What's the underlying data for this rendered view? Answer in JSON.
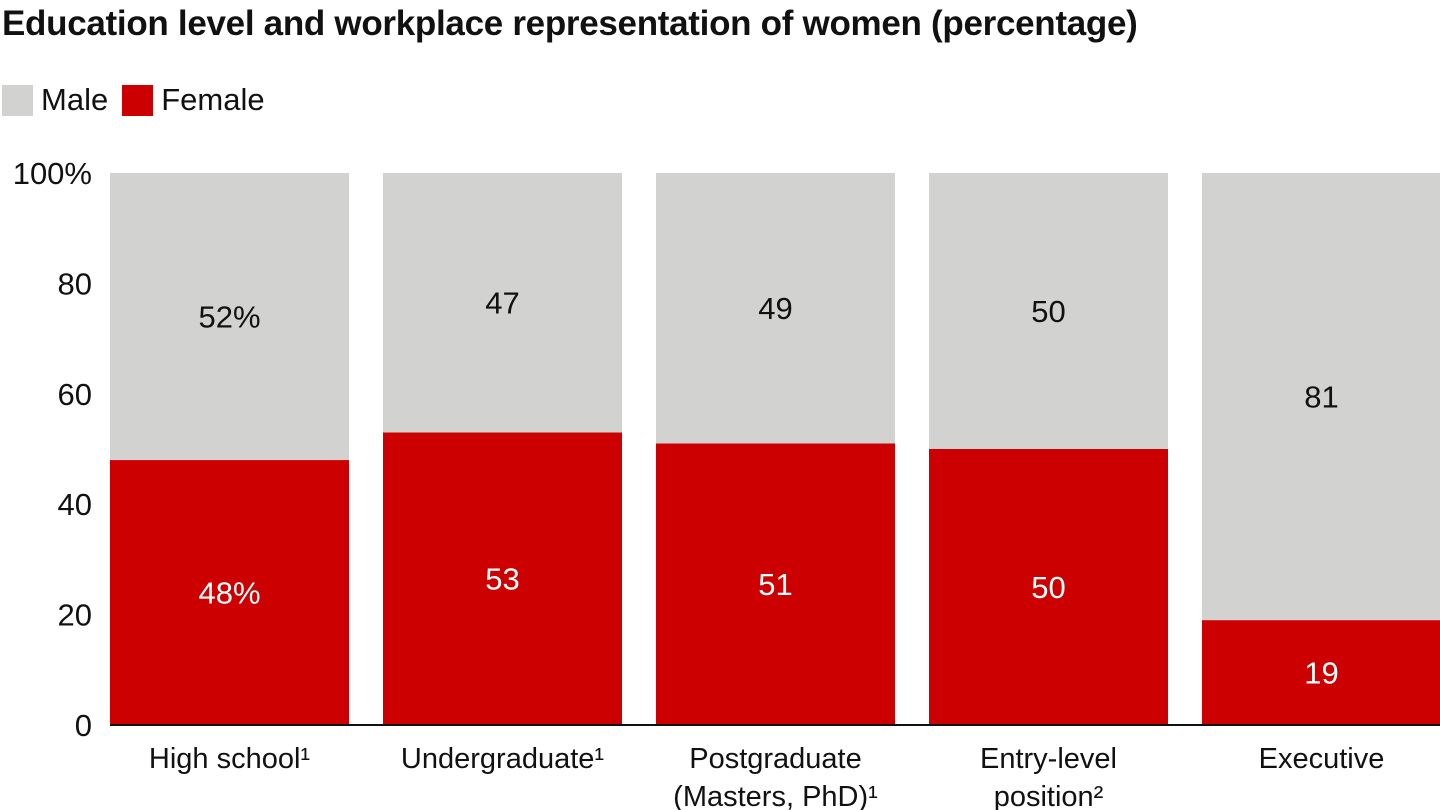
{
  "title": "Education level and workplace representation of women (percentage)",
  "legend": {
    "male_label": "Male",
    "female_label": "Female",
    "male_color": "#d2d2d1",
    "female_color": "#cc0000"
  },
  "chart_data": {
    "type": "bar",
    "stacked": true,
    "title": "Education level and workplace representation of women (percentage)",
    "xlabel": "",
    "ylabel": "",
    "ylim": [
      0,
      100
    ],
    "y_ticks": [
      "0",
      "20",
      "40",
      "60",
      "80",
      "100%"
    ],
    "y_tick_values": [
      0,
      20,
      40,
      60,
      80,
      100
    ],
    "grid": false,
    "legend_position": "top-left",
    "categories": [
      [
        "High school¹"
      ],
      [
        "Undergraduate¹"
      ],
      [
        "Postgraduate",
        "(Masters, PhD)¹"
      ],
      [
        "Entry-level",
        "position²"
      ],
      [
        "Executive"
      ]
    ],
    "series": [
      {
        "name": "Female",
        "color": "#cc0000",
        "values": [
          48,
          53,
          51,
          50,
          19
        ],
        "labels": [
          "48%",
          "53",
          "51",
          "50",
          "19"
        ]
      },
      {
        "name": "Male",
        "color": "#d2d2d1",
        "values": [
          52,
          47,
          49,
          50,
          81
        ],
        "labels": [
          "52%",
          "47",
          "49",
          "50",
          "81"
        ]
      }
    ]
  }
}
